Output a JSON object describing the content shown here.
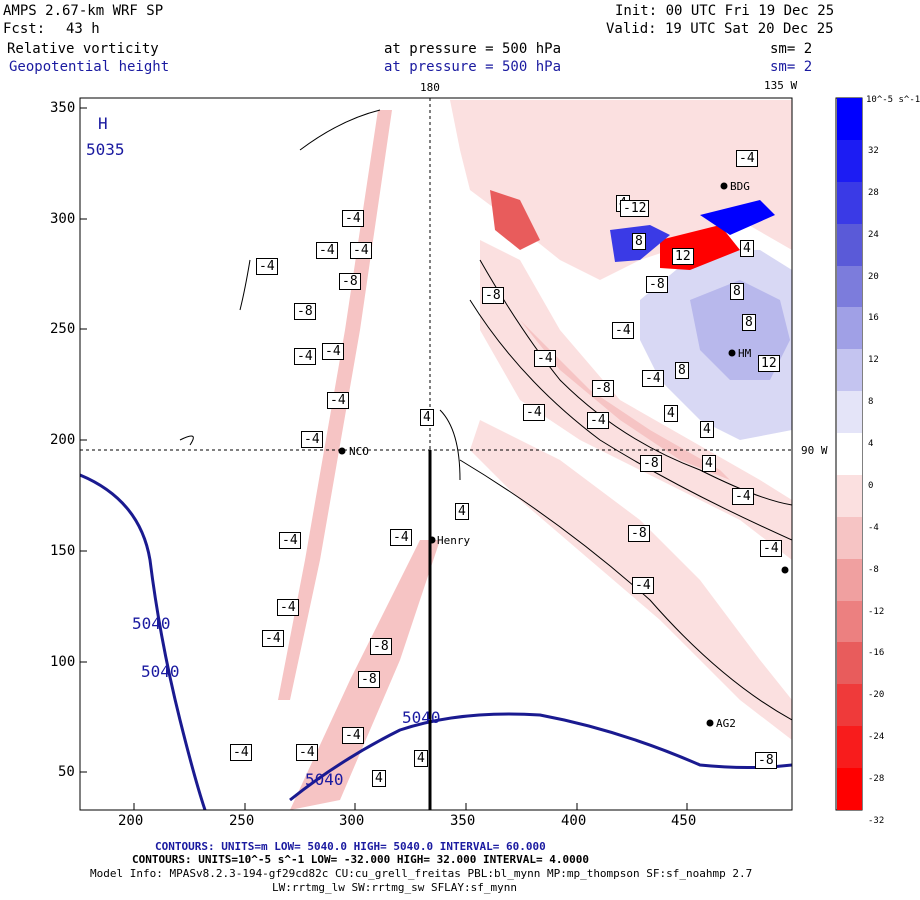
{
  "header": {
    "model": "AMPS 2.67-km WRF SP",
    "init": "Init: 00 UTC Fri 19 Dec 25",
    "fcst_label": "Fcst:",
    "fcst_value": "43 h",
    "valid": "Valid: 19 UTC Sat 20 Dec 25",
    "field1": "Relative vorticity",
    "field2": "Geopotential height",
    "pressure1": "at pressure =  500 hPa",
    "pressure2": "at pressure =  500 hPa",
    "sm1": "sm= 2",
    "sm2": "sm= 2"
  },
  "map": {
    "lon_labels": {
      "top_180": "180",
      "top_135w": "135 W",
      "right_90w": "90 W"
    },
    "x_ticks": [
      "200",
      "250",
      "300",
      "350",
      "400",
      "450"
    ],
    "y_ticks": [
      "350",
      "300",
      "250",
      "200",
      "150",
      "100",
      "50"
    ],
    "high_marker": "H",
    "high_value": "5035",
    "height_contour_labels": [
      "5040",
      "5040",
      "5040",
      "5040"
    ],
    "stations": [
      "NCO",
      "Henry",
      "HM",
      "AG2",
      "BDG"
    ],
    "vorticity_labels": [
      "-4",
      "-4",
      "-4",
      "-4",
      "-8",
      "-8",
      "-4",
      "-4",
      "-4",
      "-4",
      "-4",
      "-4",
      "-4",
      "-4",
      "-4",
      "-4",
      "-8",
      "-8",
      "-4",
      "4",
      "4",
      "4",
      "4",
      "4",
      "-4",
      "-8",
      "-4",
      "-8",
      "-8",
      "-4",
      "-4",
      "-4",
      "-4",
      "-8",
      "-4",
      "-4",
      "-4",
      "4",
      "4",
      "4",
      "8",
      "8",
      "12",
      "12",
      "8",
      "8",
      "4",
      "-8",
      "-12",
      "-8",
      "8",
      "4",
      "-4"
    ]
  },
  "colorbar": {
    "unit": "10^-5 s^-1",
    "ticks": [
      "32",
      "28",
      "24",
      "20",
      "16",
      "12",
      "8",
      "4",
      "0",
      "-4",
      "-8",
      "-12",
      "-16",
      "-20",
      "-24",
      "-28",
      "-32"
    ],
    "colors": [
      "#0000ff",
      "#1c1cf3",
      "#3a3ae6",
      "#5a5ad8",
      "#7c7cdc",
      "#a0a0e6",
      "#c4c4f0",
      "#e4e4f8",
      "#ffffff",
      "#fbe0e0",
      "#f6c4c4",
      "#f0a0a0",
      "#ec8080",
      "#e85c5c",
      "#ef3a3a",
      "#f81c1c",
      "#ff0000"
    ]
  },
  "footer": {
    "line1": "CONTOURS:  UNITS=m  LOW=  5040.0       HIGH=  5040.0       INTERVAL=   60.000",
    "line2": "CONTOURS:  UNITS=10^-5 s^-1  LOW= -32.000       HIGH=  32.000       INTERVAL=   4.0000",
    "line3": "Model Info: MPASv8.2.3-194-gf29cd82c CU:cu_grell_freitas PBL:bl_mynn MP:mp_thompson SF:sf_noahmp 2.7",
    "line4": "LW:rrtmg_lw SW:rrtmg_sw SFLAY:sf_mynn"
  }
}
